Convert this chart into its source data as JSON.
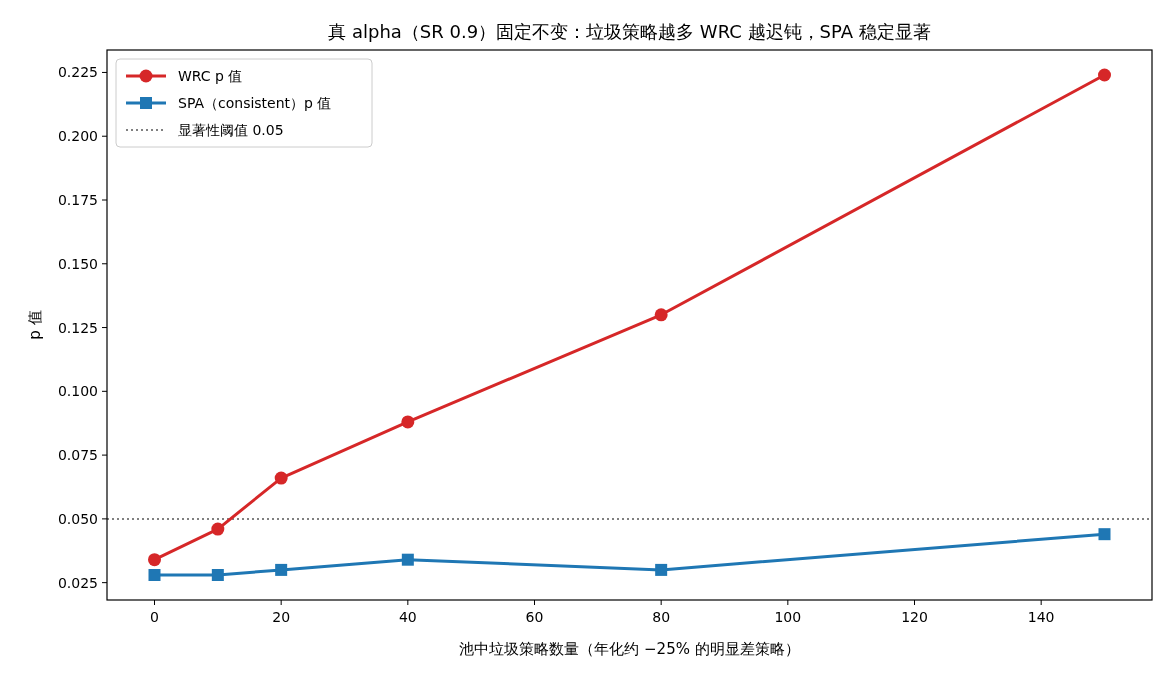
{
  "chart_data": {
    "type": "line",
    "title": "真 alpha（SR 0.9）固定不变：垃圾策略越多 WRC 越迟钝，SPA 稳定显著",
    "xlabel": "池中垃圾策略数量（年化约 −25% 的明显差策略）",
    "ylabel": "p 值",
    "x": [
      0,
      10,
      20,
      40,
      80,
      150
    ],
    "series": [
      {
        "name": "WRC p 值",
        "color": "#d62728",
        "marker": "circle",
        "values": [
          0.034,
          0.046,
          0.066,
          0.088,
          0.13,
          0.224
        ]
      },
      {
        "name": "SPA（consistent）p 值",
        "color": "#1f77b4",
        "marker": "square",
        "values": [
          0.028,
          0.028,
          0.03,
          0.034,
          0.03,
          0.044
        ]
      }
    ],
    "ref_lines": [
      {
        "axis": "y",
        "value": 0.05,
        "label": "显著性阈值 0.05",
        "color": "#808080",
        "line_style": "dotted"
      }
    ],
    "xlim": [
      -7.5,
      157.5
    ],
    "ylim": [
      0.0182,
      0.2338
    ],
    "xticks": [
      0,
      20,
      40,
      60,
      80,
      100,
      120,
      140
    ],
    "yticks": [
      0.025,
      {
        "value": 0.05,
        "label": "0.050"
      },
      0.075,
      {
        "value": 0.1,
        "label": "0.100"
      },
      0.125,
      {
        "value": 0.15,
        "label": "0.150"
      },
      0.175,
      {
        "value": 0.2,
        "label": "0.200"
      },
      0.225
    ],
    "legend": "top left",
    "grid": false
  }
}
